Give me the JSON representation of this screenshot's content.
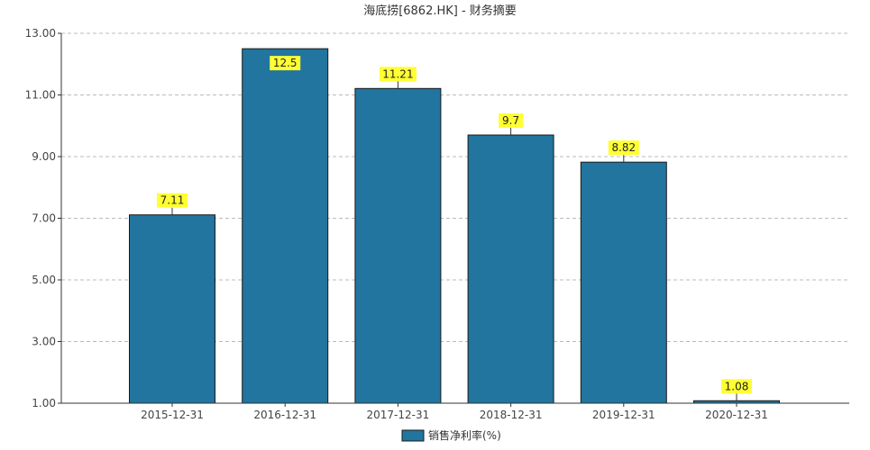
{
  "chart_data": {
    "type": "bar",
    "title": "海底捞[6862.HK] - 财务摘要",
    "categories": [
      "2015-12-31",
      "2016-12-31",
      "2017-12-31",
      "2018-12-31",
      "2019-12-31",
      "2020-12-31"
    ],
    "series": [
      {
        "name": "销售净利率(%)",
        "values": [
          7.11,
          12.5,
          11.21,
          9.7,
          8.82,
          1.08
        ]
      }
    ],
    "data_labels": [
      "7.11",
      "12.5",
      "11.21",
      "9.7",
      "8.82",
      "1.08"
    ],
    "ylim": [
      1.0,
      13.0
    ],
    "yticks": [
      1.0,
      3.0,
      5.0,
      7.0,
      9.0,
      11.0,
      13.0
    ],
    "ytick_labels": [
      "1.00",
      "3.00",
      "5.00",
      "7.00",
      "9.00",
      "11.00",
      "13.00"
    ],
    "grid": true,
    "legend_position": "bottom-center",
    "colors": {
      "bar": "#21759e",
      "bar_stroke": "#1a1a1a",
      "label_bg": "#ffff33",
      "grid": "#bbbbbb",
      "axis": "#333333",
      "text": "#444444"
    }
  }
}
